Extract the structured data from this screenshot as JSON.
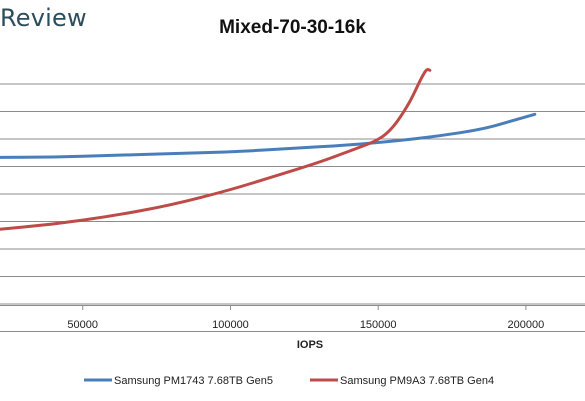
{
  "brand": "Review",
  "chart_data": {
    "type": "line",
    "title": "Mixed-70-30-16k",
    "xlabel": "IOPS",
    "ylabel": "",
    "xlim": [
      22000,
      220000
    ],
    "x_ticks": [
      50000,
      100000,
      150000,
      200000
    ],
    "y_gridlines": 9,
    "grid": true,
    "legend_position": "bottom",
    "series": [
      {
        "name": "Samsung PM1743 7.68TB Gen5",
        "color": "#4a7ebb",
        "x": [
          20000,
          40000,
          60000,
          80000,
          100000,
          120000,
          140000,
          155000,
          170000,
          185000,
          195000,
          203000
        ],
        "y": [
          0.33,
          0.34,
          0.4,
          0.47,
          0.53,
          0.65,
          0.78,
          0.92,
          1.1,
          1.35,
          1.65,
          1.9
        ]
      },
      {
        "name": "Samsung PM9A3 7.68TB Gen4",
        "color": "#be4b48",
        "x": [
          20000,
          40000,
          60000,
          80000,
          100000,
          115000,
          130000,
          140000,
          150000,
          155000,
          160000,
          163000,
          165000,
          166500,
          167500
        ],
        "y": [
          -2.3,
          -2.1,
          -1.8,
          -1.4,
          -0.85,
          -0.35,
          0.15,
          0.55,
          0.95,
          1.4,
          2.2,
          2.85,
          3.3,
          3.55,
          3.5
        ]
      }
    ]
  }
}
